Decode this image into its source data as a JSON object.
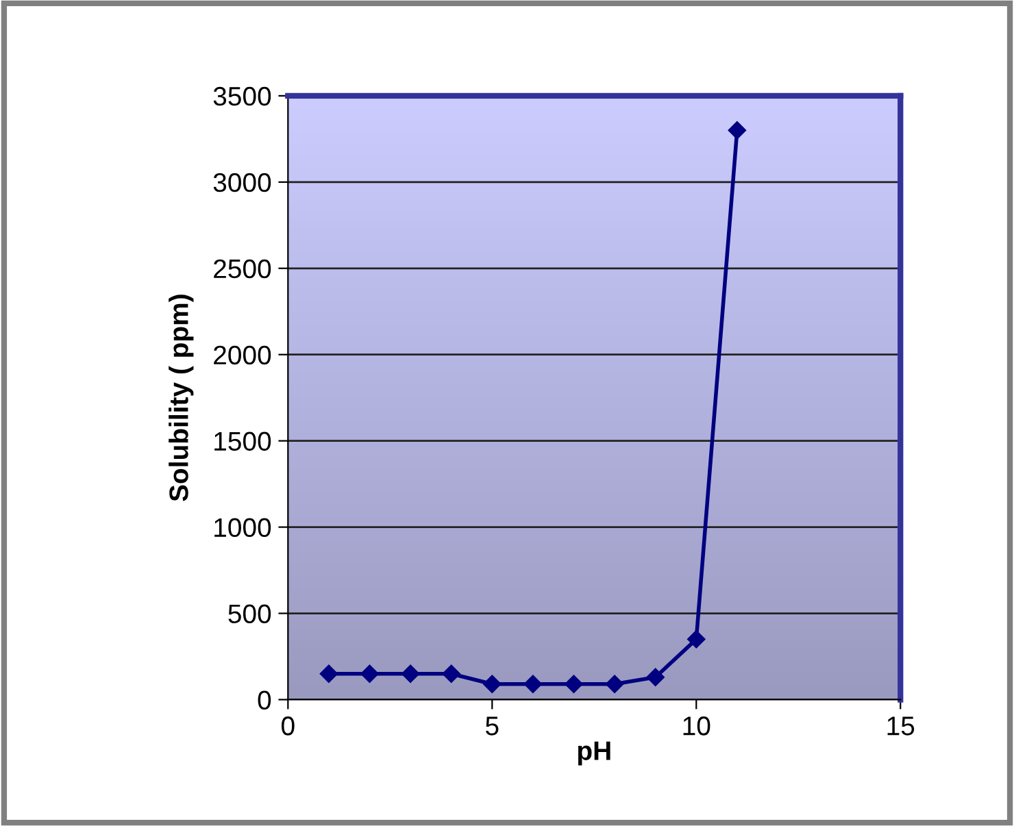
{
  "chart_data": {
    "type": "line",
    "xlabel": "pH",
    "ylabel": "Solubility ( ppm)",
    "x": [
      1,
      2,
      3,
      4,
      5,
      6,
      7,
      8,
      9,
      10,
      11
    ],
    "series": [
      {
        "color": "#000080",
        "values": [
          150,
          150,
          150,
          150,
          90,
          90,
          90,
          90,
          130,
          350,
          3300
        ]
      }
    ],
    "xlim": [
      0,
      15
    ],
    "xticks": [
      0,
      5,
      10,
      15
    ],
    "ylim": [
      0,
      3500
    ],
    "yticks": [
      0,
      500,
      1000,
      1500,
      2000,
      2500,
      3000,
      3500
    ],
    "grid": "y",
    "marker": "diamond",
    "line_style": "solid",
    "legend": false
  }
}
